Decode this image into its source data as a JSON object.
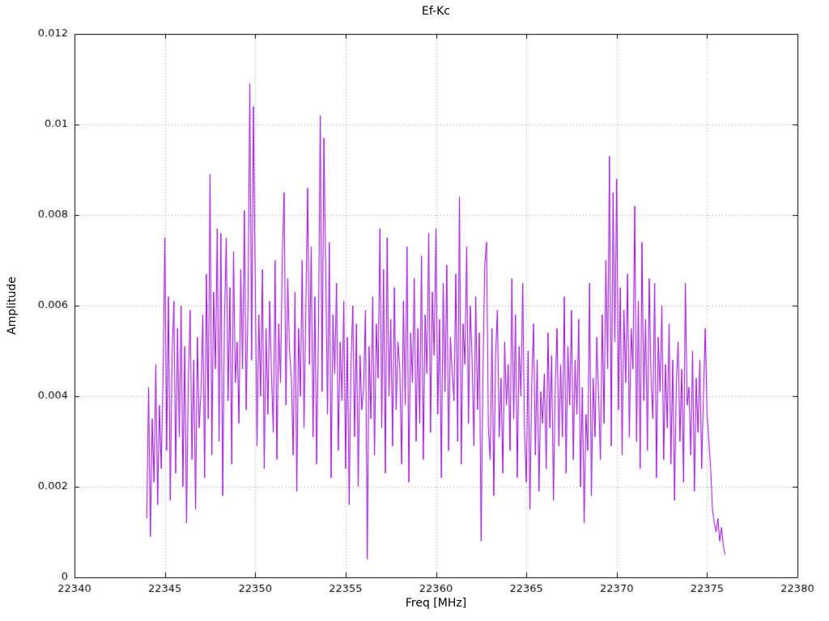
{
  "page": {
    "background": "#ffffff",
    "text_color": "#000000"
  },
  "chart_data": {
    "type": "line",
    "title": "Ef-Kc",
    "xlabel": "Freq [MHz]",
    "ylabel": "Amplitude",
    "xlim": [
      22340,
      22380
    ],
    "ylim": [
      0,
      0.012
    ],
    "x_tick_values": [
      22340,
      22345,
      22350,
      22355,
      22360,
      22365,
      22370,
      22375,
      22380
    ],
    "x_tick_labels": [
      "22340",
      "22345",
      "22350",
      "22355",
      "22360",
      "22365",
      "22370",
      "22375",
      "22380"
    ],
    "y_tick_values": [
      0,
      0.002,
      0.004,
      0.006,
      0.008,
      0.01,
      0.012
    ],
    "y_tick_labels": [
      "0",
      "0.002",
      "0.004",
      "0.006",
      "0.008",
      "0.01",
      "0.012"
    ],
    "grid": true,
    "grid_style": "dotted",
    "grid_color": "#999999",
    "border_color": "#000000",
    "line_color": "#9400d3",
    "legend": "none",
    "series": [
      {
        "name": "Ef-Kc",
        "x_start": 22344.0,
        "x_step": 0.1,
        "values": [
          0.0013,
          0.0042,
          0.0009,
          0.0035,
          0.0021,
          0.0047,
          0.0016,
          0.0038,
          0.0024,
          0.0044,
          0.0075,
          0.0028,
          0.0062,
          0.0017,
          0.0049,
          0.0061,
          0.0023,
          0.0055,
          0.0031,
          0.006,
          0.002,
          0.0051,
          0.0012,
          0.0044,
          0.0059,
          0.0026,
          0.0048,
          0.0015,
          0.0053,
          0.0033,
          0.0041,
          0.0058,
          0.0022,
          0.0067,
          0.0035,
          0.0089,
          0.0027,
          0.0063,
          0.0046,
          0.0077,
          0.003,
          0.0076,
          0.0018,
          0.0057,
          0.0075,
          0.0039,
          0.0064,
          0.0025,
          0.0072,
          0.0043,
          0.0052,
          0.0034,
          0.0068,
          0.0046,
          0.0081,
          0.0037,
          0.006,
          0.0109,
          0.0048,
          0.0104,
          0.0066,
          0.0029,
          0.0058,
          0.004,
          0.0068,
          0.0024,
          0.0055,
          0.0036,
          0.0061,
          0.0045,
          0.0032,
          0.007,
          0.0026,
          0.0056,
          0.0043,
          0.0071,
          0.0085,
          0.0038,
          0.0066,
          0.005,
          0.0044,
          0.0027,
          0.0063,
          0.0019,
          0.0055,
          0.004,
          0.007,
          0.0033,
          0.0059,
          0.0086,
          0.0047,
          0.0073,
          0.0031,
          0.0062,
          0.0025,
          0.0054,
          0.0102,
          0.0041,
          0.0097,
          0.0068,
          0.0036,
          0.0074,
          0.0022,
          0.0058,
          0.0045,
          0.0065,
          0.0028,
          0.0052,
          0.0039,
          0.0061,
          0.0024,
          0.0053,
          0.0016,
          0.0047,
          0.006,
          0.0031,
          0.0056,
          0.002,
          0.0049,
          0.0037,
          0.0042,
          0.0059,
          0.0004,
          0.0051,
          0.0035,
          0.0062,
          0.0027,
          0.0056,
          0.0044,
          0.0077,
          0.0033,
          0.0068,
          0.0023,
          0.0075,
          0.004,
          0.0057,
          0.0029,
          0.0064,
          0.0037,
          0.0052,
          0.0046,
          0.0025,
          0.0061,
          0.0038,
          0.0073,
          0.0021,
          0.0054,
          0.0043,
          0.0066,
          0.003,
          0.0055,
          0.0034,
          0.0071,
          0.0026,
          0.0058,
          0.0045,
          0.0076,
          0.0032,
          0.0063,
          0.0049,
          0.0077,
          0.0036,
          0.0057,
          0.0022,
          0.0065,
          0.0041,
          0.0069,
          0.0028,
          0.0053,
          0.0045,
          0.0039,
          0.0067,
          0.003,
          0.0084,
          0.0025,
          0.0056,
          0.0047,
          0.0073,
          0.0034,
          0.006,
          0.0048,
          0.0029,
          0.0062,
          0.0037,
          0.0054,
          0.0008,
          0.0045,
          0.0069,
          0.0074,
          0.0033,
          0.0026,
          0.0055,
          0.0018,
          0.0049,
          0.0059,
          0.0031,
          0.0044,
          0.0023,
          0.0052,
          0.0038,
          0.0047,
          0.0028,
          0.0066,
          0.0035,
          0.0058,
          0.0022,
          0.0051,
          0.004,
          0.0065,
          0.0032,
          0.0021,
          0.005,
          0.0015,
          0.0043,
          0.0056,
          0.0027,
          0.0048,
          0.0019,
          0.0041,
          0.0034,
          0.0045,
          0.0024,
          0.0054,
          0.0033,
          0.0049,
          0.0017,
          0.0042,
          0.0055,
          0.0029,
          0.0047,
          0.0031,
          0.0062,
          0.0023,
          0.0051,
          0.0038,
          0.0059,
          0.0026,
          0.0048,
          0.0036,
          0.0057,
          0.002,
          0.0042,
          0.0012,
          0.0036,
          0.0028,
          0.0065,
          0.0018,
          0.0044,
          0.0031,
          0.0053,
          0.004,
          0.0026,
          0.0058,
          0.0034,
          0.007,
          0.0046,
          0.0093,
          0.0029,
          0.0085,
          0.0052,
          0.0088,
          0.0037,
          0.0064,
          0.0027,
          0.0059,
          0.0043,
          0.0067,
          0.0031,
          0.0055,
          0.0046,
          0.0082,
          0.003,
          0.0061,
          0.0024,
          0.0074,
          0.0039,
          0.0057,
          0.0028,
          0.0066,
          0.0044,
          0.0035,
          0.0065,
          0.0022,
          0.0053,
          0.0041,
          0.006,
          0.0026,
          0.0047,
          0.0033,
          0.0056,
          0.0025,
          0.0048,
          0.0017,
          0.0043,
          0.0052,
          0.003,
          0.0046,
          0.0021,
          0.0065,
          0.0038,
          0.0042,
          0.0027,
          0.005,
          0.0019,
          0.0044,
          0.0032,
          0.0048,
          0.0024,
          0.004,
          0.0055,
          0.0036,
          0.003,
          0.0024,
          0.0015,
          0.0012,
          0.001,
          0.0013,
          0.0008,
          0.0011,
          0.0007,
          0.0005
        ]
      }
    ]
  }
}
